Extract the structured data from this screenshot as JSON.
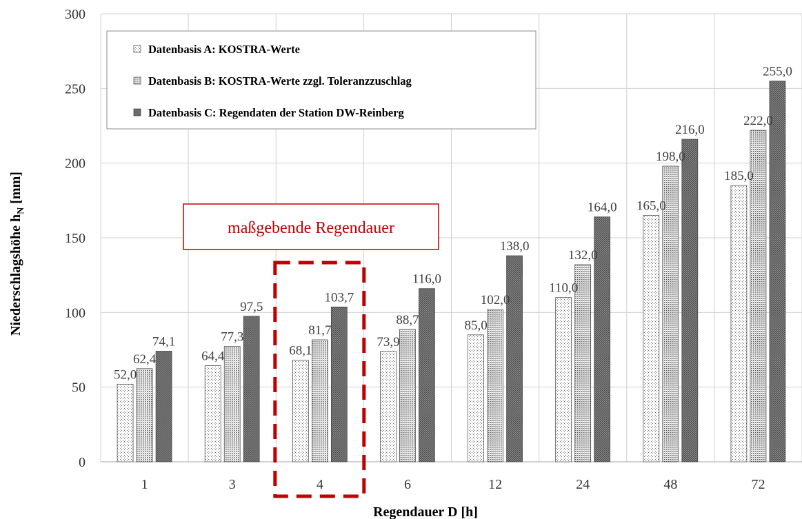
{
  "chart_data": {
    "type": "bar",
    "categories": [
      "1",
      "3",
      "4",
      "6",
      "12",
      "24",
      "48",
      "72"
    ],
    "series": [
      {
        "name": "Datenbasis A: KOSTRA-Werte",
        "values": [
          52.0,
          64.4,
          68.1,
          73.9,
          85.0,
          110.0,
          165.0,
          185.0
        ],
        "labels": [
          "52,0",
          "64,4",
          "68,1",
          "73,9",
          "85,0",
          "110,0",
          "165,0",
          "185,0"
        ],
        "pattern": "sparse-dots"
      },
      {
        "name": "Datenbasis B: KOSTRA-Werte zzgl. Toleranzzuschlag",
        "values": [
          62.4,
          77.3,
          81.7,
          88.7,
          102.0,
          132.0,
          198.0,
          222.0
        ],
        "labels": [
          "62,4",
          "77,3",
          "81,7",
          "88,7",
          "102,0",
          "132,0",
          "198,0",
          "222,0"
        ],
        "pattern": "dense-dots"
      },
      {
        "name": "Datenbasis C: Regendaten der Station DW-Reinberg",
        "values": [
          74.1,
          97.5,
          103.7,
          116.0,
          138.0,
          164.0,
          216.0,
          255.0
        ],
        "labels": [
          "74,1",
          "97,5",
          "103,7",
          "116,0",
          "138,0",
          "164,0",
          "216,0",
          "255,0"
        ],
        "pattern": "dark-checker"
      }
    ],
    "xlabel": "Regendauer D [h]",
    "ylabel": "Niederschlagshöhe h",
    "ylabel_subscript": "N",
    "ylabel_unit": " [mm]",
    "ylim": [
      0,
      300
    ],
    "yticks": [
      0,
      50,
      100,
      150,
      200,
      250,
      300
    ],
    "grid": true,
    "legend_position": "top-left",
    "annotation": {
      "text": "maßgebende Regendauer",
      "color": "#c00000",
      "highlight_category": "4"
    }
  }
}
